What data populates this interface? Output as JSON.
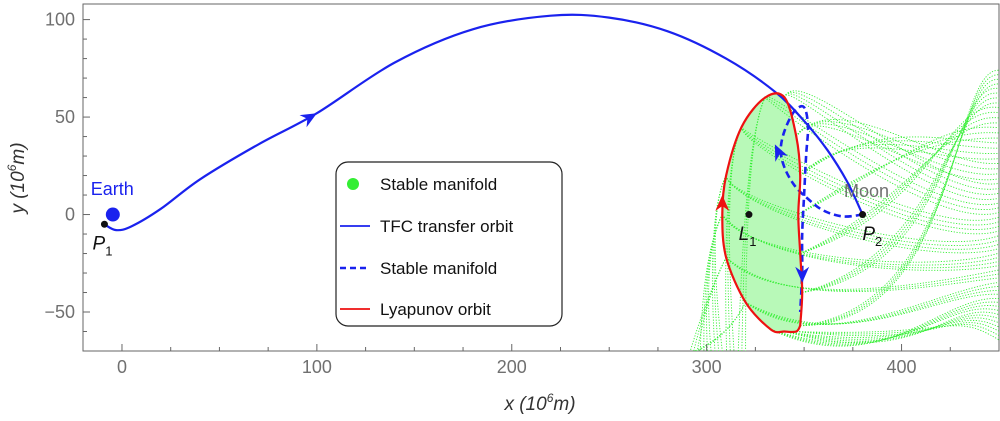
{
  "chart_data": {
    "type": "line",
    "title": "",
    "xlabel": "x (10",
    "xlabel_sup": "6",
    "xlabel_unit": "m)",
    "ylabel": "y (10",
    "ylabel_sup": "6",
    "ylabel_unit": "m)",
    "xlim": [
      -20,
      450
    ],
    "ylim": [
      -70,
      108
    ],
    "x_ticks": [
      0,
      100,
      200,
      300,
      400
    ],
    "x_tick_labels": [
      "0",
      "100",
      "200",
      "300",
      "400"
    ],
    "y_ticks": [
      -50,
      0,
      50,
      100
    ],
    "y_tick_labels": [
      "−50",
      "0",
      "50",
      "100"
    ],
    "grid": false,
    "colors": {
      "manifold": "#33ee33",
      "transfer": "#1a22ee",
      "lyapunov": "#ee1111",
      "earth": "#1a22ee",
      "moon_label": "#707070",
      "points": "#111111"
    },
    "legend": {
      "position": "center",
      "entries": [
        {
          "label": "Stable manifold",
          "style": "green-dot"
        },
        {
          "label": "TFC transfer orbit",
          "style": "blue-solid"
        },
        {
          "label": "Stable manifold",
          "style": "blue-dashed"
        },
        {
          "label": "Lyapunov orbit",
          "style": "red-solid"
        }
      ]
    },
    "annotations": [
      {
        "id": "earth-label",
        "text": "Earth",
        "x": -5,
        "y": 10
      },
      {
        "id": "p1-label",
        "text": "P",
        "sub": "1",
        "x": -10,
        "y": -18
      },
      {
        "id": "l1-label",
        "text": "L",
        "sub": "1",
        "x": 321,
        "y": -13
      },
      {
        "id": "p2-label",
        "text": "P",
        "sub": "2",
        "x": 385,
        "y": -13
      },
      {
        "id": "moon-label",
        "text": "Moon",
        "x": 382,
        "y": 9
      }
    ],
    "bodies": {
      "earth": {
        "x": -4.7,
        "y": 0
      },
      "p1": {
        "x": -9,
        "y": -5
      },
      "l1": {
        "x": 321.7,
        "y": 0
      },
      "p2": {
        "x": 380,
        "y": 0
      }
    },
    "series": [
      {
        "name": "TFC transfer orbit",
        "style": "solid",
        "x": [
          -9,
          -3,
          5,
          20,
          40,
          70,
          100,
          140,
          180,
          220,
          250,
          280,
          310,
          335,
          350,
          362,
          372,
          380
        ],
        "y": [
          -5,
          -8,
          -6,
          3,
          18,
          36,
          52,
          78,
          95,
          102,
          101,
          94,
          80,
          63,
          48,
          33,
          17,
          0
        ]
      },
      {
        "name": "Stable manifold (transfer)",
        "style": "dashed",
        "x": [
          380,
          370,
          360,
          352,
          345,
          340,
          338,
          340,
          345,
          350,
          352,
          351,
          350,
          349,
          349,
          348
        ],
        "y": [
          0,
          -1,
          2,
          8,
          15,
          24,
          33,
          43,
          53,
          55,
          45,
          30,
          10,
          -10,
          -30,
          -50
        ]
      },
      {
        "name": "Lyapunov orbit",
        "x": [
          348,
          349,
          348,
          347,
          348,
          346,
          340,
          330,
          318,
          310,
          308,
          310,
          320,
          333,
          340,
          346,
          348
        ],
        "y": [
          -57,
          -40,
          -20,
          0,
          20,
          40,
          60,
          60,
          45,
          20,
          0,
          -22,
          -45,
          -59,
          -60,
          -60,
          -57
        ]
      }
    ]
  }
}
